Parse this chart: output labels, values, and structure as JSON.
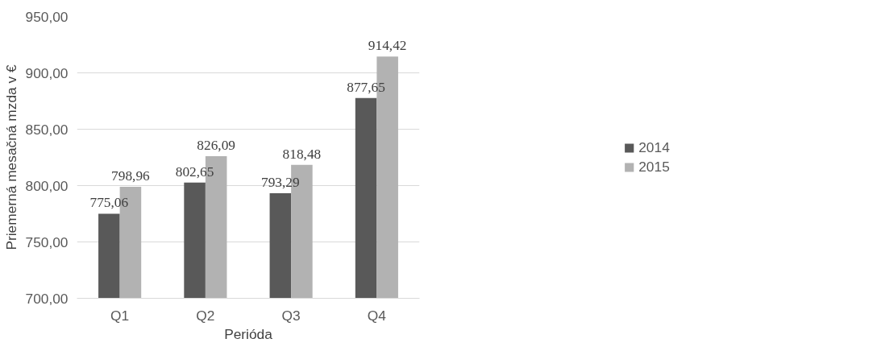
{
  "chart_data": {
    "type": "bar",
    "xlabel": "Perióda",
    "ylabel": "Priemerná mesačná mzda v €",
    "categories": [
      "Q1",
      "Q2",
      "Q3",
      "Q4"
    ],
    "series": [
      {
        "name": "2014",
        "color": "#595959",
        "values": [
          775.06,
          802.65,
          793.29,
          877.65
        ],
        "value_labels": [
          "775,06",
          "802,65",
          "793,29",
          "877,65"
        ]
      },
      {
        "name": "2015",
        "color": "#b2b2b2",
        "values": [
          798.96,
          826.09,
          818.48,
          914.42
        ],
        "value_labels": [
          "798,96",
          "826,09",
          "818,48",
          "914,42"
        ]
      }
    ],
    "ylim": [
      700,
      950
    ],
    "yticks": [
      {
        "value": 700,
        "label": "700,00"
      },
      {
        "value": 750,
        "label": "750,00"
      },
      {
        "value": 800,
        "label": "800,00"
      },
      {
        "value": 850,
        "label": "850,00"
      },
      {
        "value": 900,
        "label": "900,00"
      },
      {
        "value": 950,
        "label": "950,00"
      }
    ],
    "grid": "y",
    "legend": "right"
  }
}
